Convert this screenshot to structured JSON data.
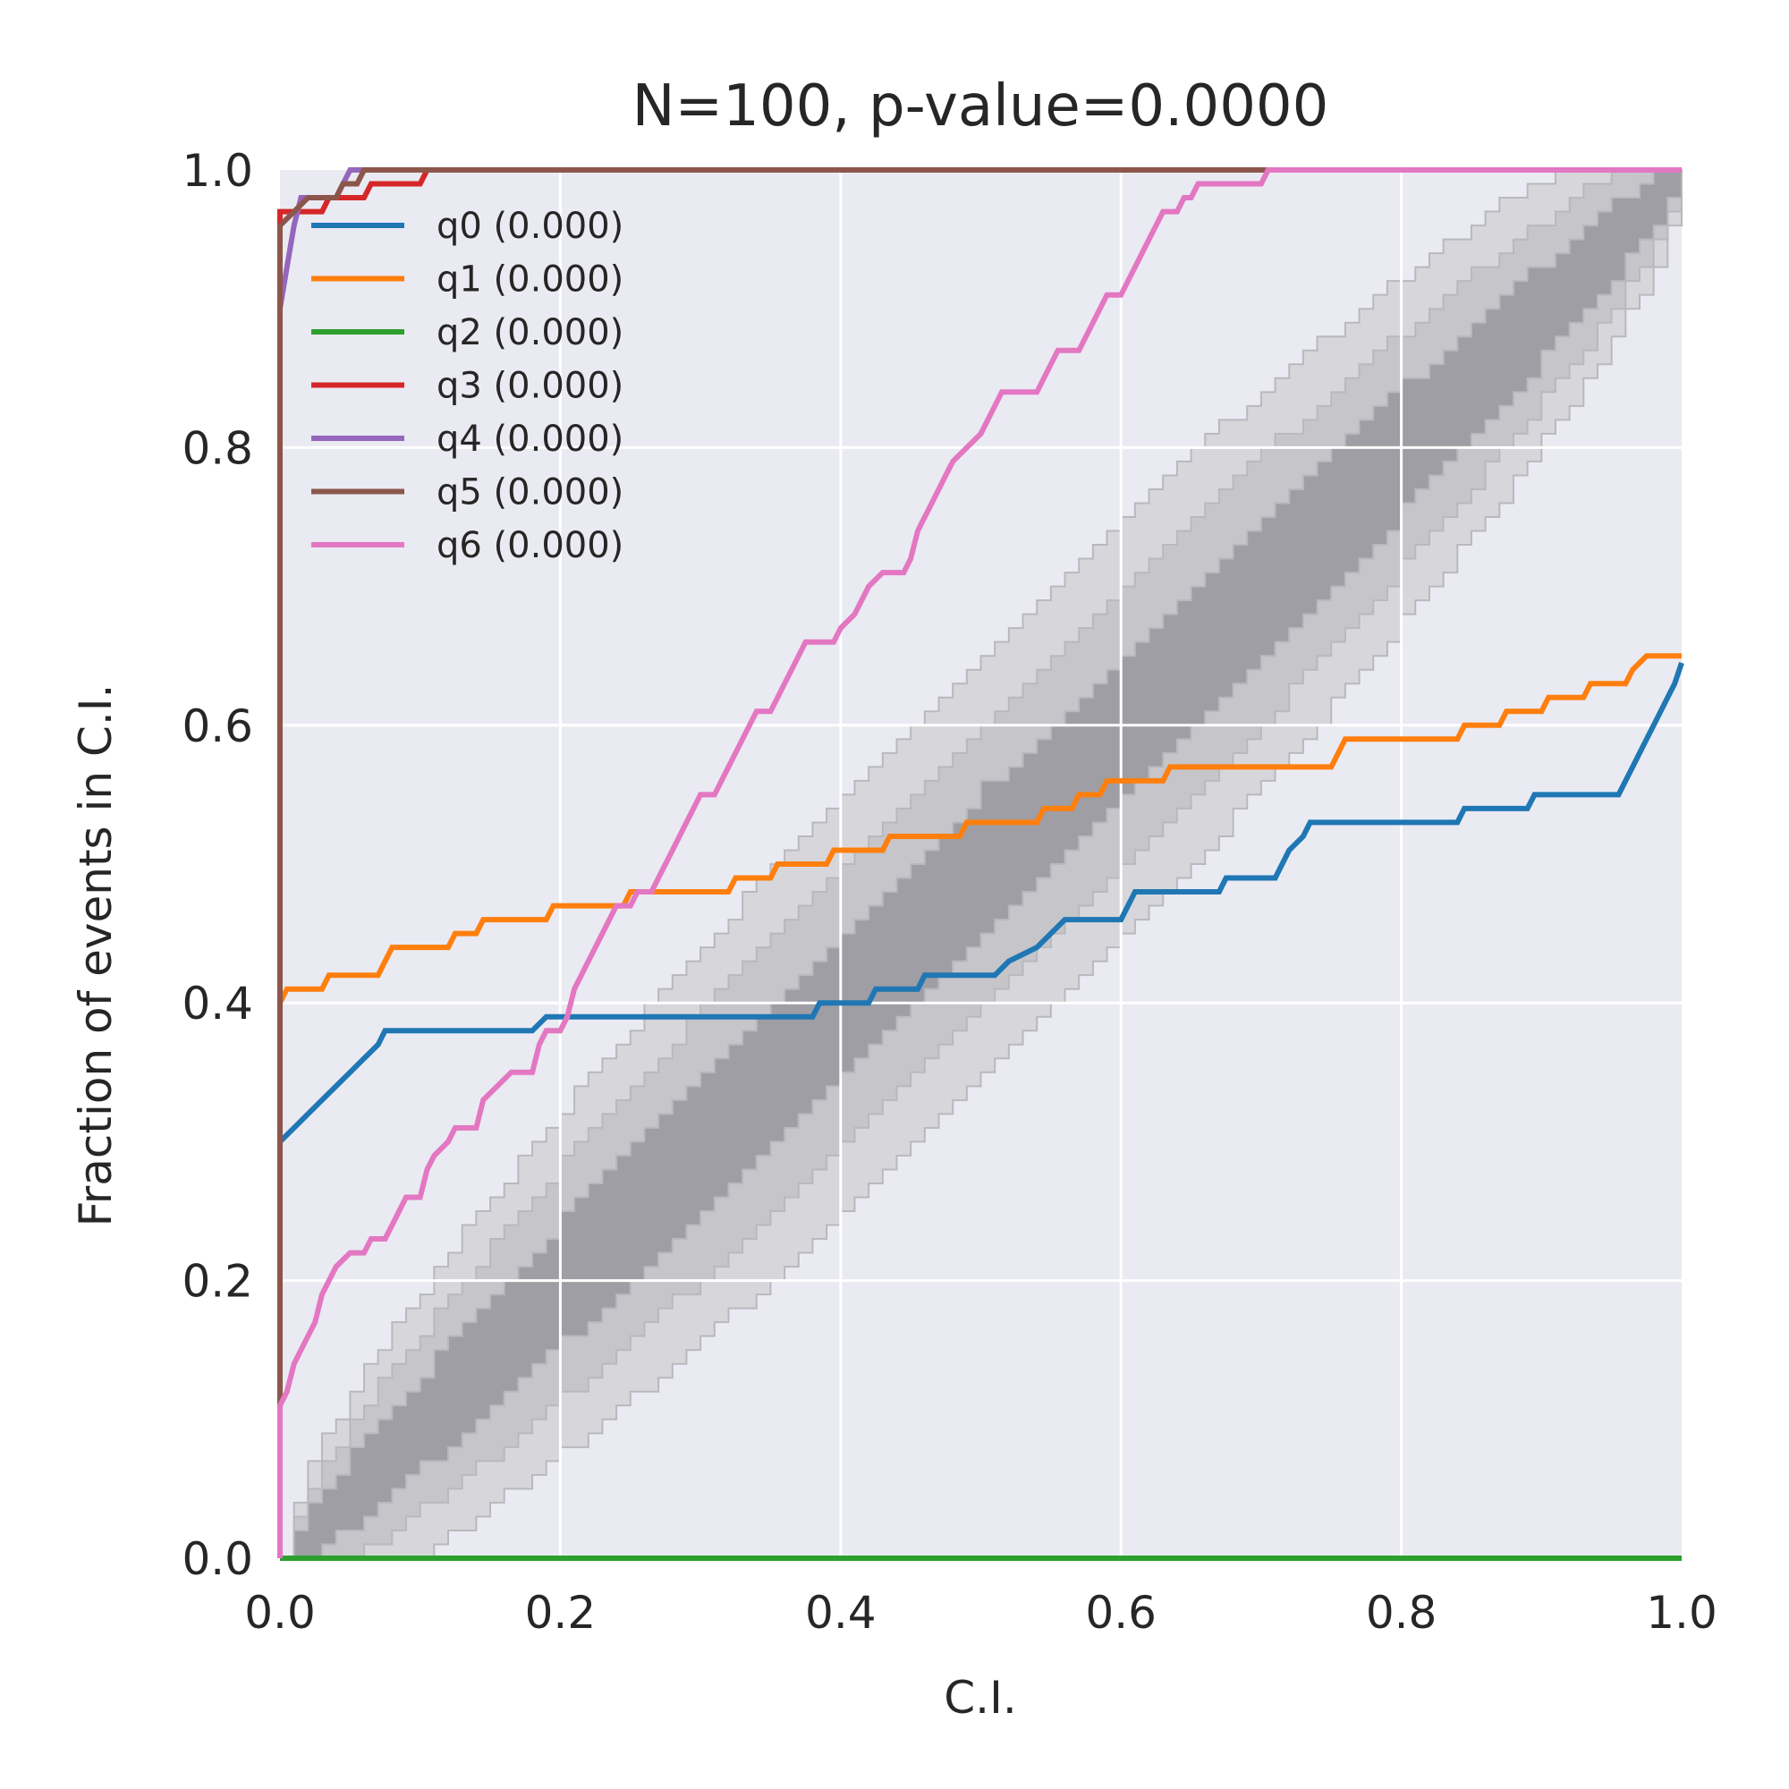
{
  "chart_data": {
    "type": "line",
    "title": "N=100, p-value=0.0000",
    "xlabel": "C.I.",
    "ylabel": "Fraction of events in C.I.",
    "xlim": [
      0,
      1
    ],
    "ylim": [
      0,
      1
    ],
    "xticks": [
      "0.0",
      "0.2",
      "0.4",
      "0.6",
      "0.8",
      "1.0"
    ],
    "yticks": [
      "0.0",
      "0.2",
      "0.4",
      "0.6",
      "0.8",
      "1.0"
    ],
    "grid": true,
    "legend_position": "top-left",
    "confidence_bands": [
      {
        "sigma": 1,
        "color": "#9e9ea4"
      },
      {
        "sigma": 2,
        "color": "#c5c5ca"
      },
      {
        "sigma": 3,
        "color": "#d7d7db"
      }
    ],
    "series": [
      {
        "name": "q0 (0.000)",
        "color": "#1f77b4",
        "points": [
          [
            0,
            0
          ],
          [
            0,
            0.3
          ],
          [
            0.01,
            0.31
          ],
          [
            0.02,
            0.32
          ],
          [
            0.03,
            0.33
          ],
          [
            0.04,
            0.34
          ],
          [
            0.05,
            0.35
          ],
          [
            0.06,
            0.36
          ],
          [
            0.07,
            0.37
          ],
          [
            0.075,
            0.38
          ],
          [
            0.18,
            0.38
          ],
          [
            0.19,
            0.39
          ],
          [
            0.38,
            0.39
          ],
          [
            0.385,
            0.4
          ],
          [
            0.42,
            0.4
          ],
          [
            0.425,
            0.41
          ],
          [
            0.455,
            0.41
          ],
          [
            0.46,
            0.42
          ],
          [
            0.51,
            0.42
          ],
          [
            0.52,
            0.43
          ],
          [
            0.54,
            0.44
          ],
          [
            0.55,
            0.45
          ],
          [
            0.56,
            0.46
          ],
          [
            0.6,
            0.46
          ],
          [
            0.605,
            0.47
          ],
          [
            0.61,
            0.48
          ],
          [
            0.67,
            0.48
          ],
          [
            0.675,
            0.49
          ],
          [
            0.71,
            0.49
          ],
          [
            0.715,
            0.5
          ],
          [
            0.72,
            0.51
          ],
          [
            0.73,
            0.52
          ],
          [
            0.735,
            0.53
          ],
          [
            0.84,
            0.53
          ],
          [
            0.845,
            0.54
          ],
          [
            0.89,
            0.54
          ],
          [
            0.895,
            0.55
          ],
          [
            0.955,
            0.55
          ],
          [
            0.96,
            0.56
          ],
          [
            0.965,
            0.57
          ],
          [
            0.97,
            0.58
          ],
          [
            0.975,
            0.59
          ],
          [
            0.98,
            0.6
          ],
          [
            0.985,
            0.61
          ],
          [
            0.99,
            0.62
          ],
          [
            0.995,
            0.63
          ],
          [
            1.0,
            0.645
          ]
        ]
      },
      {
        "name": "q1 (0.000)",
        "color": "#ff7f0e",
        "points": [
          [
            0,
            0
          ],
          [
            0,
            0.4
          ],
          [
            0.005,
            0.41
          ],
          [
            0.03,
            0.41
          ],
          [
            0.035,
            0.42
          ],
          [
            0.07,
            0.42
          ],
          [
            0.075,
            0.43
          ],
          [
            0.08,
            0.44
          ],
          [
            0.12,
            0.44
          ],
          [
            0.125,
            0.45
          ],
          [
            0.14,
            0.45
          ],
          [
            0.145,
            0.46
          ],
          [
            0.19,
            0.46
          ],
          [
            0.195,
            0.47
          ],
          [
            0.245,
            0.47
          ],
          [
            0.25,
            0.48
          ],
          [
            0.32,
            0.48
          ],
          [
            0.325,
            0.49
          ],
          [
            0.35,
            0.49
          ],
          [
            0.355,
            0.5
          ],
          [
            0.39,
            0.5
          ],
          [
            0.395,
            0.51
          ],
          [
            0.43,
            0.51
          ],
          [
            0.435,
            0.52
          ],
          [
            0.485,
            0.52
          ],
          [
            0.49,
            0.53
          ],
          [
            0.54,
            0.53
          ],
          [
            0.545,
            0.54
          ],
          [
            0.565,
            0.54
          ],
          [
            0.57,
            0.55
          ],
          [
            0.585,
            0.55
          ],
          [
            0.59,
            0.56
          ],
          [
            0.63,
            0.56
          ],
          [
            0.635,
            0.57
          ],
          [
            0.75,
            0.57
          ],
          [
            0.755,
            0.58
          ],
          [
            0.76,
            0.59
          ],
          [
            0.84,
            0.59
          ],
          [
            0.845,
            0.6
          ],
          [
            0.87,
            0.6
          ],
          [
            0.875,
            0.61
          ],
          [
            0.9,
            0.61
          ],
          [
            0.905,
            0.62
          ],
          [
            0.93,
            0.62
          ],
          [
            0.935,
            0.63
          ],
          [
            0.96,
            0.63
          ],
          [
            0.965,
            0.64
          ],
          [
            0.975,
            0.65
          ],
          [
            1.0,
            0.65
          ]
        ]
      },
      {
        "name": "q2 (0.000)",
        "color": "#2ca02c",
        "points": [
          [
            0,
            0
          ],
          [
            1,
            0
          ]
        ]
      },
      {
        "name": "q3 (0.000)",
        "color": "#d62728",
        "points": [
          [
            0,
            0
          ],
          [
            0,
            0.97
          ],
          [
            0.03,
            0.97
          ],
          [
            0.035,
            0.98
          ],
          [
            0.06,
            0.98
          ],
          [
            0.065,
            0.99
          ],
          [
            0.1,
            0.99
          ],
          [
            0.105,
            1.0
          ],
          [
            1.0,
            1.0
          ]
        ]
      },
      {
        "name": "q4 (0.000)",
        "color": "#9467bd",
        "points": [
          [
            0,
            0
          ],
          [
            0,
            0.9
          ],
          [
            0.005,
            0.93
          ],
          [
            0.01,
            0.96
          ],
          [
            0.015,
            0.98
          ],
          [
            0.04,
            0.98
          ],
          [
            0.045,
            0.99
          ],
          [
            0.05,
            1.0
          ],
          [
            1.0,
            1.0
          ]
        ]
      },
      {
        "name": "q5 (0.000)",
        "color": "#8c564b",
        "points": [
          [
            0,
            0
          ],
          [
            0,
            0.96
          ],
          [
            0.01,
            0.97
          ],
          [
            0.02,
            0.98
          ],
          [
            0.04,
            0.98
          ],
          [
            0.045,
            0.99
          ],
          [
            0.055,
            0.99
          ],
          [
            0.06,
            1.0
          ],
          [
            0.74,
            1.0
          ]
        ]
      },
      {
        "name": "q6 (0.000)",
        "color": "#e377c2",
        "points": [
          [
            0,
            0
          ],
          [
            0,
            0.11
          ],
          [
            0.005,
            0.12
          ],
          [
            0.01,
            0.14
          ],
          [
            0.015,
            0.15
          ],
          [
            0.02,
            0.16
          ],
          [
            0.025,
            0.17
          ],
          [
            0.03,
            0.19
          ],
          [
            0.035,
            0.2
          ],
          [
            0.04,
            0.21
          ],
          [
            0.05,
            0.22
          ],
          [
            0.06,
            0.22
          ],
          [
            0.065,
            0.23
          ],
          [
            0.075,
            0.23
          ],
          [
            0.08,
            0.24
          ],
          [
            0.085,
            0.25
          ],
          [
            0.09,
            0.26
          ],
          [
            0.1,
            0.26
          ],
          [
            0.105,
            0.28
          ],
          [
            0.11,
            0.29
          ],
          [
            0.12,
            0.3
          ],
          [
            0.125,
            0.31
          ],
          [
            0.14,
            0.31
          ],
          [
            0.145,
            0.33
          ],
          [
            0.155,
            0.34
          ],
          [
            0.165,
            0.35
          ],
          [
            0.18,
            0.35
          ],
          [
            0.185,
            0.37
          ],
          [
            0.19,
            0.38
          ],
          [
            0.2,
            0.38
          ],
          [
            0.205,
            0.39
          ],
          [
            0.21,
            0.41
          ],
          [
            0.215,
            0.42
          ],
          [
            0.22,
            0.43
          ],
          [
            0.225,
            0.44
          ],
          [
            0.23,
            0.45
          ],
          [
            0.235,
            0.46
          ],
          [
            0.24,
            0.47
          ],
          [
            0.25,
            0.47
          ],
          [
            0.255,
            0.48
          ],
          [
            0.265,
            0.48
          ],
          [
            0.27,
            0.49
          ],
          [
            0.28,
            0.51
          ],
          [
            0.285,
            0.52
          ],
          [
            0.29,
            0.53
          ],
          [
            0.295,
            0.54
          ],
          [
            0.3,
            0.55
          ],
          [
            0.31,
            0.55
          ],
          [
            0.315,
            0.56
          ],
          [
            0.32,
            0.57
          ],
          [
            0.325,
            0.58
          ],
          [
            0.33,
            0.59
          ],
          [
            0.335,
            0.6
          ],
          [
            0.34,
            0.61
          ],
          [
            0.35,
            0.61
          ],
          [
            0.355,
            0.62
          ],
          [
            0.36,
            0.63
          ],
          [
            0.365,
            0.64
          ],
          [
            0.37,
            0.65
          ],
          [
            0.375,
            0.66
          ],
          [
            0.395,
            0.66
          ],
          [
            0.4,
            0.67
          ],
          [
            0.41,
            0.68
          ],
          [
            0.415,
            0.69
          ],
          [
            0.42,
            0.7
          ],
          [
            0.43,
            0.71
          ],
          [
            0.445,
            0.71
          ],
          [
            0.45,
            0.72
          ],
          [
            0.455,
            0.74
          ],
          [
            0.46,
            0.75
          ],
          [
            0.465,
            0.76
          ],
          [
            0.47,
            0.77
          ],
          [
            0.475,
            0.78
          ],
          [
            0.48,
            0.79
          ],
          [
            0.49,
            0.8
          ],
          [
            0.5,
            0.81
          ],
          [
            0.505,
            0.82
          ],
          [
            0.51,
            0.83
          ],
          [
            0.515,
            0.84
          ],
          [
            0.54,
            0.84
          ],
          [
            0.545,
            0.85
          ],
          [
            0.55,
            0.86
          ],
          [
            0.555,
            0.87
          ],
          [
            0.57,
            0.87
          ],
          [
            0.575,
            0.88
          ],
          [
            0.58,
            0.89
          ],
          [
            0.585,
            0.9
          ],
          [
            0.59,
            0.91
          ],
          [
            0.6,
            0.91
          ],
          [
            0.605,
            0.92
          ],
          [
            0.61,
            0.93
          ],
          [
            0.615,
            0.94
          ],
          [
            0.62,
            0.95
          ],
          [
            0.625,
            0.96
          ],
          [
            0.63,
            0.97
          ],
          [
            0.64,
            0.97
          ],
          [
            0.645,
            0.98
          ],
          [
            0.65,
            0.98
          ],
          [
            0.655,
            0.99
          ],
          [
            0.7,
            0.99
          ],
          [
            0.705,
            1.0
          ],
          [
            0.74,
            1.0
          ],
          [
            0.745,
            1.0
          ],
          [
            1.0,
            1.0
          ]
        ]
      }
    ]
  }
}
